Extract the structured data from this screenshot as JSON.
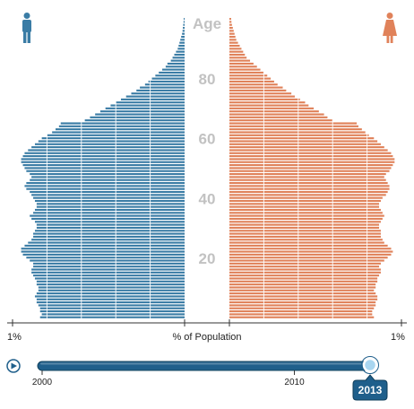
{
  "colors": {
    "male": "#3a7ca5",
    "female": "#e0825a",
    "gridline": "#ffffff",
    "age_text": "#c2c2c2",
    "slider_fill": "#1f5f8b",
    "slider_thumb": "#a9d6f0",
    "badge_bg": "#1f5f8b",
    "badge_text": "#ffffff"
  },
  "icons": {
    "male": "male-figure-icon",
    "female": "female-figure-icon",
    "play": "play-icon"
  },
  "chart_data": {
    "type": "bar",
    "subtype": "population-pyramid",
    "title": "",
    "age_axis_label": "Age",
    "age_ticks": [
      {
        "age": 80,
        "label": "80"
      },
      {
        "age": 60,
        "label": "60"
      },
      {
        "age": 40,
        "label": "40"
      },
      {
        "age": 20,
        "label": "20"
      }
    ],
    "x_axis_label": "% of Population",
    "x_left_label": "1%",
    "x_right_label": "1%",
    "xlim_percent": [
      0,
      1.05
    ],
    "ages": [
      0,
      1,
      2,
      3,
      4,
      5,
      6,
      7,
      8,
      9,
      10,
      11,
      12,
      13,
      14,
      15,
      16,
      17,
      18,
      19,
      20,
      21,
      22,
      23,
      24,
      25,
      26,
      27,
      28,
      29,
      30,
      31,
      32,
      33,
      34,
      35,
      36,
      37,
      38,
      39,
      40,
      41,
      42,
      43,
      44,
      45,
      46,
      47,
      48,
      49,
      50,
      51,
      52,
      53,
      54,
      55,
      56,
      57,
      58,
      59,
      60,
      61,
      62,
      63,
      64,
      65,
      66,
      67,
      68,
      69,
      70,
      71,
      72,
      73,
      74,
      75,
      76,
      77,
      78,
      79,
      80,
      81,
      82,
      83,
      84,
      85,
      86,
      87,
      88,
      89,
      90,
      91,
      92,
      93,
      94,
      95,
      96,
      97,
      98,
      99,
      100
    ],
    "series": [
      {
        "name": "Male",
        "side": "left",
        "values": [
          0.84,
          0.83,
          0.84,
          0.84,
          0.85,
          0.86,
          0.86,
          0.87,
          0.86,
          0.85,
          0.85,
          0.86,
          0.86,
          0.87,
          0.88,
          0.89,
          0.89,
          0.88,
          0.88,
          0.9,
          0.92,
          0.94,
          0.95,
          0.95,
          0.93,
          0.91,
          0.89,
          0.88,
          0.88,
          0.87,
          0.86,
          0.86,
          0.87,
          0.89,
          0.9,
          0.88,
          0.87,
          0.86,
          0.86,
          0.87,
          0.88,
          0.89,
          0.9,
          0.92,
          0.93,
          0.92,
          0.9,
          0.89,
          0.9,
          0.92,
          0.93,
          0.94,
          0.95,
          0.95,
          0.94,
          0.93,
          0.91,
          0.89,
          0.87,
          0.85,
          0.83,
          0.8,
          0.77,
          0.75,
          0.73,
          0.72,
          0.58,
          0.55,
          0.52,
          0.49,
          0.46,
          0.43,
          0.4,
          0.37,
          0.34,
          0.31,
          0.28,
          0.26,
          0.23,
          0.21,
          0.19,
          0.17,
          0.15,
          0.13,
          0.11,
          0.1,
          0.08,
          0.07,
          0.06,
          0.05,
          0.04,
          0.035,
          0.03,
          0.025,
          0.02,
          0.015,
          0.012,
          0.01,
          0.008,
          0.006,
          0.005
        ]
      },
      {
        "name": "Female",
        "side": "right",
        "values": [
          0.84,
          0.83,
          0.83,
          0.84,
          0.85,
          0.85,
          0.86,
          0.86,
          0.85,
          0.84,
          0.85,
          0.85,
          0.86,
          0.86,
          0.87,
          0.88,
          0.88,
          0.87,
          0.88,
          0.9,
          0.92,
          0.94,
          0.95,
          0.94,
          0.92,
          0.9,
          0.89,
          0.88,
          0.88,
          0.88,
          0.87,
          0.87,
          0.88,
          0.89,
          0.9,
          0.89,
          0.88,
          0.87,
          0.87,
          0.88,
          0.89,
          0.91,
          0.92,
          0.93,
          0.93,
          0.92,
          0.91,
          0.9,
          0.91,
          0.93,
          0.94,
          0.95,
          0.96,
          0.96,
          0.95,
          0.94,
          0.92,
          0.9,
          0.88,
          0.86,
          0.84,
          0.81,
          0.79,
          0.77,
          0.75,
          0.74,
          0.6,
          0.57,
          0.55,
          0.52,
          0.49,
          0.46,
          0.44,
          0.41,
          0.38,
          0.36,
          0.33,
          0.31,
          0.28,
          0.26,
          0.24,
          0.22,
          0.2,
          0.18,
          0.16,
          0.14,
          0.12,
          0.1,
          0.09,
          0.08,
          0.07,
          0.06,
          0.05,
          0.04,
          0.035,
          0.03,
          0.025,
          0.02,
          0.015,
          0.012,
          0.01
        ]
      }
    ]
  },
  "timeline": {
    "play_label": "",
    "start_year": 2000,
    "end_year": 2013,
    "labels": [
      {
        "year": 2000,
        "label": "2000"
      },
      {
        "year": 2010,
        "label": "2010"
      }
    ],
    "current_year": 2013,
    "current_label": "2013"
  }
}
